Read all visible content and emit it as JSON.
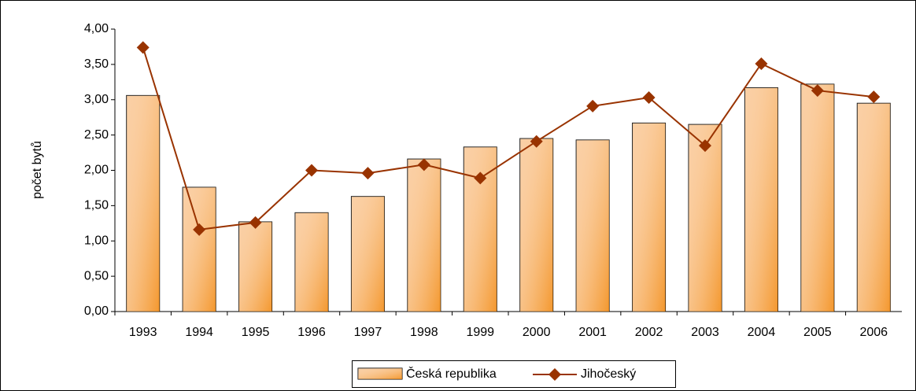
{
  "chart_data": {
    "type": "bar_line",
    "y_label": "počet bytů",
    "categories": [
      "1993",
      "1994",
      "1995",
      "1996",
      "1997",
      "1998",
      "1999",
      "2000",
      "2001",
      "2002",
      "2003",
      "2004",
      "2005",
      "2006"
    ],
    "series": [
      {
        "name": "Česká republika",
        "type": "bar",
        "color": "#f9bf86",
        "values": [
          3.06,
          1.76,
          1.27,
          1.4,
          1.63,
          2.16,
          2.33,
          2.45,
          2.43,
          2.67,
          2.65,
          3.17,
          3.22,
          2.95
        ]
      },
      {
        "name": "Jihočeský",
        "type": "line",
        "color": "#993300",
        "values": [
          3.74,
          1.16,
          1.26,
          2.0,
          1.96,
          2.08,
          1.89,
          2.41,
          2.91,
          3.03,
          2.35,
          3.51,
          3.13,
          3.04
        ]
      }
    ],
    "ylim": [
      0,
      4
    ],
    "yticks": [
      {
        "value": 0,
        "label": "0,00"
      },
      {
        "value": 0.5,
        "label": "0,50"
      },
      {
        "value": 1,
        "label": "1,00"
      },
      {
        "value": 1.5,
        "label": "1,50"
      },
      {
        "value": 2,
        "label": "2,00"
      },
      {
        "value": 2.5,
        "label": "2,50"
      },
      {
        "value": 3,
        "label": "3,00"
      },
      {
        "value": 3.5,
        "label": "3,50"
      },
      {
        "value": 4,
        "label": "4,00"
      }
    ],
    "legend": "bottom"
  }
}
